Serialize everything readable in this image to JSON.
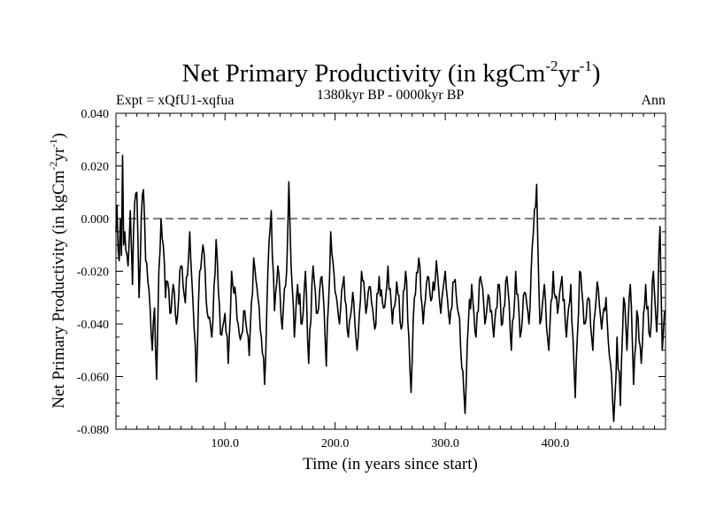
{
  "chart_data": {
    "type": "line",
    "title_main": "Net Primary Productivity (in kgCm",
    "title_sup1": "-2",
    "title_mid": "yr",
    "title_sup2": "-1",
    "title_end": ")",
    "subtitle_left": "Expt = xQfU1-xqfua",
    "subtitle_center": "1380kyr BP - 0000kyr BP",
    "subtitle_right": "Ann",
    "xlabel": "Time (in years since start)",
    "ylabel_main": "Net Primary Productivity (in kgCm",
    "ylabel_sup1": "-2",
    "ylabel_mid": "yr",
    "ylabel_sup2": "-1",
    "ylabel_end": ")",
    "xlim": [
      1,
      500
    ],
    "ylim": [
      -0.08,
      0.04
    ],
    "x_ticks": [
      {
        "value": 100,
        "label": "100.0"
      },
      {
        "value": 200,
        "label": "200.0"
      },
      {
        "value": 300,
        "label": "300.0"
      },
      {
        "value": 400,
        "label": "400.0"
      }
    ],
    "y_ticks": [
      {
        "value": 0.04,
        "label": "0.040"
      },
      {
        "value": 0.02,
        "label": "0.020"
      },
      {
        "value": 0.0,
        "label": "0.000"
      },
      {
        "value": -0.02,
        "label": "-0.020"
      },
      {
        "value": -0.04,
        "label": "-0.040"
      },
      {
        "value": -0.06,
        "label": "-0.060"
      },
      {
        "value": -0.08,
        "label": "-0.080"
      }
    ],
    "reference_line": 0.0,
    "anchors": [
      [
        1,
        -0.005
      ],
      [
        2,
        0.005
      ],
      [
        3,
        -0.012
      ],
      [
        4,
        -0.016
      ],
      [
        5,
        0.0
      ],
      [
        6,
        -0.014
      ],
      [
        7,
        0.024
      ],
      [
        8,
        -0.01
      ],
      [
        9,
        -0.005
      ],
      [
        10,
        -0.012
      ],
      [
        12,
        -0.018
      ],
      [
        14,
        0.003
      ],
      [
        16,
        -0.025
      ],
      [
        18,
        0.006
      ],
      [
        20,
        0.01
      ],
      [
        22,
        -0.03
      ],
      [
        24,
        0.0
      ],
      [
        26,
        0.011
      ],
      [
        28,
        -0.016
      ],
      [
        30,
        -0.024
      ],
      [
        32,
        -0.034
      ],
      [
        34,
        -0.05
      ],
      [
        36,
        -0.034
      ],
      [
        38,
        -0.061
      ],
      [
        40,
        -0.02
      ],
      [
        42,
        0.0
      ],
      [
        44,
        -0.01
      ],
      [
        46,
        -0.03
      ],
      [
        48,
        -0.024
      ],
      [
        50,
        -0.036
      ],
      [
        53,
        -0.025
      ],
      [
        56,
        -0.04
      ],
      [
        60,
        -0.018
      ],
      [
        64,
        -0.032
      ],
      [
        68,
        -0.005
      ],
      [
        71,
        -0.032
      ],
      [
        74,
        -0.062
      ],
      [
        77,
        -0.02
      ],
      [
        80,
        -0.01
      ],
      [
        84,
        -0.036
      ],
      [
        88,
        -0.045
      ],
      [
        92,
        -0.008
      ],
      [
        96,
        -0.044
      ],
      [
        100,
        -0.036
      ],
      [
        103,
        -0.055
      ],
      [
        106,
        -0.02
      ],
      [
        110,
        -0.03
      ],
      [
        114,
        -0.046
      ],
      [
        118,
        -0.035
      ],
      [
        122,
        -0.052
      ],
      [
        126,
        -0.015
      ],
      [
        130,
        -0.03
      ],
      [
        133,
        -0.045
      ],
      [
        136,
        -0.063
      ],
      [
        139,
        -0.02
      ],
      [
        142,
        0.003
      ],
      [
        145,
        -0.035
      ],
      [
        148,
        -0.018
      ],
      [
        152,
        -0.042
      ],
      [
        156,
        -0.02
      ],
      [
        158,
        0.014
      ],
      [
        160,
        -0.018
      ],
      [
        163,
        -0.045
      ],
      [
        166,
        -0.025
      ],
      [
        170,
        -0.04
      ],
      [
        173,
        -0.02
      ],
      [
        176,
        -0.055
      ],
      [
        180,
        -0.018
      ],
      [
        184,
        -0.036
      ],
      [
        188,
        -0.022
      ],
      [
        192,
        -0.056
      ],
      [
        196,
        -0.005
      ],
      [
        200,
        -0.028
      ],
      [
        204,
        -0.04
      ],
      [
        208,
        -0.022
      ],
      [
        212,
        -0.045
      ],
      [
        216,
        -0.028
      ],
      [
        220,
        -0.05
      ],
      [
        224,
        -0.02
      ],
      [
        228,
        -0.036
      ],
      [
        232,
        -0.026
      ],
      [
        236,
        -0.042
      ],
      [
        240,
        -0.022
      ],
      [
        244,
        -0.034
      ],
      [
        248,
        -0.018
      ],
      [
        252,
        -0.04
      ],
      [
        256,
        -0.024
      ],
      [
        260,
        -0.042
      ],
      [
        264,
        -0.02
      ],
      [
        267,
        -0.045
      ],
      [
        269,
        -0.066
      ],
      [
        272,
        -0.03
      ],
      [
        276,
        -0.015
      ],
      [
        280,
        -0.04
      ],
      [
        284,
        -0.022
      ],
      [
        288,
        -0.03
      ],
      [
        292,
        -0.016
      ],
      [
        296,
        -0.036
      ],
      [
        300,
        -0.02
      ],
      [
        304,
        -0.04
      ],
      [
        308,
        -0.024
      ],
      [
        312,
        -0.036
      ],
      [
        316,
        -0.058
      ],
      [
        318,
        -0.074
      ],
      [
        321,
        -0.04
      ],
      [
        324,
        -0.025
      ],
      [
        328,
        -0.045
      ],
      [
        332,
        -0.022
      ],
      [
        336,
        -0.04
      ],
      [
        340,
        -0.03
      ],
      [
        344,
        -0.045
      ],
      [
        348,
        -0.025
      ],
      [
        352,
        -0.04
      ],
      [
        356,
        -0.022
      ],
      [
        360,
        -0.05
      ],
      [
        364,
        -0.02
      ],
      [
        368,
        -0.045
      ],
      [
        372,
        -0.028
      ],
      [
        376,
        -0.04
      ],
      [
        380,
        -0.005
      ],
      [
        383,
        0.013
      ],
      [
        386,
        -0.04
      ],
      [
        390,
        -0.025
      ],
      [
        394,
        -0.05
      ],
      [
        398,
        -0.02
      ],
      [
        402,
        -0.036
      ],
      [
        406,
        -0.022
      ],
      [
        410,
        -0.045
      ],
      [
        414,
        -0.025
      ],
      [
        418,
        -0.068
      ],
      [
        422,
        -0.02
      ],
      [
        426,
        -0.04
      ],
      [
        430,
        -0.03
      ],
      [
        434,
        -0.05
      ],
      [
        438,
        -0.024
      ],
      [
        442,
        -0.042
      ],
      [
        446,
        -0.03
      ],
      [
        450,
        -0.055
      ],
      [
        453,
        -0.077
      ],
      [
        456,
        -0.045
      ],
      [
        459,
        -0.071
      ],
      [
        462,
        -0.03
      ],
      [
        465,
        -0.05
      ],
      [
        468,
        -0.025
      ],
      [
        471,
        -0.063
      ],
      [
        474,
        -0.035
      ],
      [
        478,
        -0.055
      ],
      [
        482,
        -0.025
      ],
      [
        486,
        -0.045
      ],
      [
        489,
        -0.02
      ],
      [
        492,
        -0.043
      ],
      [
        495,
        -0.003
      ],
      [
        497,
        -0.05
      ],
      [
        500,
        -0.035
      ]
    ]
  }
}
